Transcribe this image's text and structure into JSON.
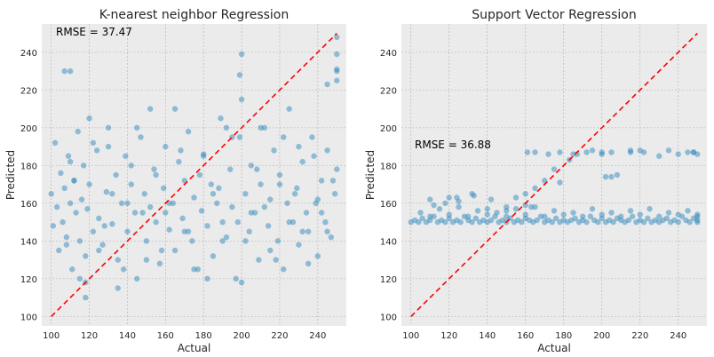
{
  "colors": {
    "panel_background": "#ebebeb",
    "grid": "#b0b0b0",
    "points": "#348abd",
    "reference_line": "#ff0000"
  },
  "chart_data": [
    {
      "type": "scatter",
      "title": "K-nearest neighbor Regression",
      "xlabel": "Actual",
      "ylabel": "Predicted",
      "annotation": "RMSE = 37.47",
      "xlim": [
        95,
        255
      ],
      "ylim": [
        95,
        255
      ],
      "xticks": [
        100,
        120,
        140,
        160,
        180,
        200,
        220,
        240
      ],
      "yticks": [
        100,
        120,
        140,
        160,
        180,
        200,
        220,
        240
      ],
      "grid": true,
      "reference_line": {
        "from": [
          100,
          100
        ],
        "to": [
          250,
          250
        ],
        "style": "dashed"
      },
      "series": [
        {
          "x": [
            100,
            101,
            102,
            103,
            104,
            105,
            106,
            107,
            108,
            109,
            110,
            111,
            112,
            113,
            114,
            115,
            116,
            117,
            118,
            119,
            120,
            122,
            124,
            125,
            127,
            129,
            130,
            132,
            134,
            135,
            137,
            139,
            140,
            142,
            144,
            145,
            147,
            149,
            150,
            152,
            154,
            155,
            157,
            159,
            160,
            162,
            164,
            165,
            167,
            169,
            170,
            172,
            174,
            175,
            177,
            179,
            180,
            182,
            184,
            185,
            187,
            189,
            190,
            192,
            194,
            195,
            197,
            199,
            200,
            202,
            204,
            205,
            207,
            209,
            210,
            212,
            214,
            215,
            217,
            219,
            220,
            222,
            224,
            225,
            227,
            229,
            230,
            232,
            234,
            235,
            237,
            239,
            240,
            242,
            244,
            245,
            247,
            249,
            250,
            110,
            115,
            120,
            125,
            130,
            135,
            140,
            145,
            150,
            155,
            160,
            165,
            170,
            175,
            180,
            185,
            190,
            195,
            200,
            205,
            210,
            215,
            220,
            225,
            230,
            235,
            240,
            245,
            250,
            108,
            112,
            118,
            122,
            128,
            132,
            138,
            142,
            148,
            152,
            158,
            162,
            168,
            172,
            178,
            182,
            188,
            192,
            198,
            202,
            208,
            212,
            218,
            222,
            228,
            232,
            238,
            242,
            248,
            250,
            250,
            250,
            250,
            245,
            200,
            199,
            118,
            110,
            107
          ],
          "y": [
            165,
            148,
            192,
            158,
            135,
            176,
            150,
            168,
            142,
            185,
            160,
            125,
            172,
            155,
            198,
            140,
            162,
            180,
            132,
            157,
            170,
            145,
            188,
            152,
            138,
            166,
            200,
            149,
            175,
            130,
            160,
            185,
            145,
            170,
            155,
            120,
            195,
            165,
            140,
            158,
            178,
            150,
            128,
            168,
            190,
            146,
            160,
            135,
            182,
            152,
            172,
            198,
            140,
            163,
            125,
            156,
            186,
            148,
            170,
            132,
            160,
            205,
            150,
            142,
            178,
            158,
            120,
            195,
            215,
            165,
            145,
            180,
            155,
            130,
            170,
            200,
            148,
            162,
            188,
            140,
            175,
            125,
            160,
            210,
            150,
            168,
            138,
            182,
            155,
            145,
            195,
            160,
            132,
            172,
            150,
            188,
            142,
            165,
            178,
            182,
            120,
            205,
            135,
            190,
            115,
            160,
            200,
            130,
            175,
            155,
            210,
            145,
            125,
            185,
            165,
            140,
            195,
            118,
            155,
            200,
            135,
            170,
            150,
            190,
            128,
            162,
            145,
            225,
            138,
            172,
            118,
            192,
            148,
            165,
            125,
            180,
            155,
            210,
            135,
            160,
            188,
            145,
            175,
            120,
            168,
            200,
            150,
            140,
            178,
            158,
            130,
            195,
            165,
            145,
            185,
            155,
            172,
            248,
            231,
            230,
            239,
            223,
            239,
            228,
            110,
            230,
            230
          ]
        }
      ]
    },
    {
      "type": "scatter",
      "title": "Support Vector Regression",
      "xlabel": "Actual",
      "ylabel": "Predicted",
      "annotation": "RMSE = 36.88",
      "xlim": [
        95,
        255
      ],
      "ylim": [
        95,
        255
      ],
      "xticks": [
        100,
        120,
        140,
        160,
        180,
        200,
        220,
        240
      ],
      "yticks": [
        100,
        120,
        140,
        160,
        180,
        200,
        220,
        240
      ],
      "grid": true,
      "reference_line": {
        "from": [
          100,
          100
        ],
        "to": [
          250,
          250
        ],
        "style": "dashed"
      },
      "series": [
        {
          "x": [
            100,
            102,
            104,
            106,
            108,
            110,
            112,
            114,
            116,
            118,
            120,
            122,
            124,
            126,
            128,
            130,
            132,
            134,
            136,
            138,
            140,
            142,
            144,
            146,
            148,
            150,
            152,
            154,
            156,
            158,
            160,
            162,
            164,
            166,
            168,
            170,
            172,
            174,
            176,
            178,
            180,
            182,
            184,
            186,
            188,
            190,
            192,
            194,
            196,
            198,
            200,
            202,
            204,
            206,
            208,
            210,
            212,
            214,
            216,
            218,
            220,
            222,
            224,
            226,
            228,
            230,
            232,
            234,
            236,
            238,
            240,
            242,
            244,
            246,
            248,
            250,
            105,
            115,
            125,
            135,
            145,
            155,
            165,
            175,
            185,
            195,
            205,
            215,
            225,
            235,
            245,
            110,
            120,
            130,
            140,
            150,
            160,
            170,
            180,
            190,
            200,
            210,
            220,
            230,
            240,
            250,
            112,
            118,
            124,
            133,
            142,
            150,
            155,
            160,
            165,
            170,
            178,
            185,
            192,
            200,
            208,
            215,
            222,
            230,
            240,
            248,
            250,
            120,
            125,
            132,
            140,
            150,
            161,
            165,
            172,
            175,
            178,
            183,
            187,
            195,
            200,
            205,
            215,
            220,
            235,
            245,
            248,
            250,
            250,
            202,
            205,
            110,
            160,
            163
          ],
          "y": [
            150,
            151,
            150,
            152,
            150,
            151,
            153,
            150,
            151,
            150,
            152,
            150,
            151,
            150,
            153,
            151,
            150,
            152,
            150,
            151,
            150,
            151,
            153,
            150,
            151,
            150,
            152,
            150,
            151,
            150,
            152,
            151,
            150,
            151,
            153,
            150,
            151,
            150,
            152,
            150,
            151,
            150,
            151,
            152,
            150,
            151,
            150,
            153,
            151,
            150,
            152,
            150,
            151,
            150,
            152,
            151,
            150,
            151,
            153,
            150,
            151,
            150,
            152,
            150,
            151,
            150,
            151,
            152,
            150,
            151,
            150,
            153,
            151,
            150,
            152,
            151,
            155,
            157,
            158,
            156,
            155,
            157,
            158,
            156,
            155,
            157,
            155,
            156,
            157,
            155,
            156,
            153,
            154,
            153,
            154,
            153,
            154,
            153,
            154,
            153,
            154,
            153,
            154,
            153,
            154,
            153,
            159,
            160,
            163,
            164,
            162,
            158,
            163,
            165,
            168,
            172,
            171,
            186,
            187,
            186,
            175,
            187,
            187,
            185,
            186,
            187,
            186,
            163,
            161,
            165,
            157,
            156,
            187,
            187,
            186,
            178,
            187,
            183,
            186,
            188,
            187,
            187,
            188,
            188,
            188,
            187,
            187,
            154,
            150,
            174,
            174,
            162,
            159,
            158
          ]
        }
      ]
    }
  ]
}
